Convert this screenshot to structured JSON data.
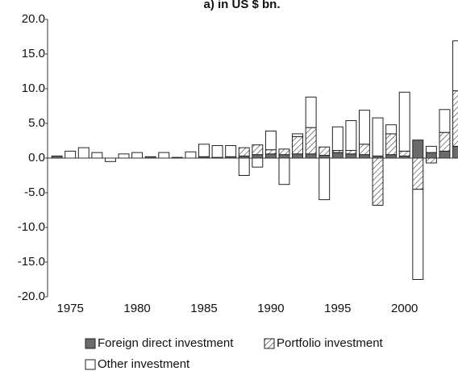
{
  "chart_data": {
    "type": "stacked-bar",
    "title": "a) in US $ bn.",
    "x": [
      1974,
      1975,
      1976,
      1977,
      1978,
      1979,
      1980,
      1981,
      1982,
      1983,
      1984,
      1985,
      1986,
      1987,
      1988,
      1989,
      1990,
      1991,
      1992,
      1993,
      1994,
      1995,
      1996,
      1997,
      1998,
      1999,
      2000,
      2001,
      2002,
      2003,
      2004
    ],
    "series": [
      {
        "name": "Foreign direct investment",
        "color": "#6b6b6b",
        "values": [
          0.3,
          0,
          0,
          0,
          0,
          0,
          0,
          0.2,
          0,
          0.1,
          0,
          0.2,
          0.1,
          0.2,
          0.3,
          0.5,
          0.6,
          0.5,
          0.6,
          0.6,
          0.4,
          0.8,
          0.6,
          0.5,
          0.3,
          0.5,
          0.3,
          2.6,
          0.8,
          1.0,
          1.7
        ]
      },
      {
        "name": "Portfolio investment",
        "color": "hatched",
        "values": [
          0,
          0,
          0,
          0,
          0,
          0,
          0,
          0,
          0,
          0,
          0,
          0,
          0,
          0,
          1.2,
          1.4,
          0.6,
          0.8,
          2.5,
          3.8,
          1.2,
          0.3,
          0.5,
          1.5,
          -6.8,
          3.0,
          0.7,
          -4.5,
          -0.7,
          2.7,
          8.0
        ]
      },
      {
        "name": "Other investment",
        "color": "#ffffff",
        "values": [
          0,
          1.0,
          1.5,
          0.8,
          -0.5,
          0.6,
          0.8,
          0,
          0.8,
          0,
          0.9,
          1.8,
          1.7,
          1.6,
          -2.5,
          -1.3,
          2.7,
          -3.8,
          0.4,
          4.4,
          -6.0,
          3.4,
          4.3,
          4.9,
          5.5,
          1.3,
          8.5,
          -13.0,
          0.9,
          3.3,
          7.2
        ]
      }
    ],
    "xlim": [
      1973.3,
      2004.3
    ],
    "xticks": [
      1975,
      1980,
      1985,
      1990,
      1995,
      2000
    ],
    "ylim": [
      -20,
      20
    ],
    "yticks": [
      {
        "value": -20,
        "label": "-20.0"
      },
      {
        "value": -15,
        "label": "-15.0"
      },
      {
        "value": -10,
        "label": "-10.0"
      },
      {
        "value": -5,
        "label": "-5.0"
      },
      {
        "value": 0,
        "label": "0.0"
      },
      {
        "value": 5,
        "label": "5.0"
      },
      {
        "value": 10,
        "label": "10.0"
      },
      {
        "value": 15,
        "label": "15.0"
      },
      {
        "value": 20,
        "label": "20.0"
      }
    ],
    "legend": "bottom"
  }
}
